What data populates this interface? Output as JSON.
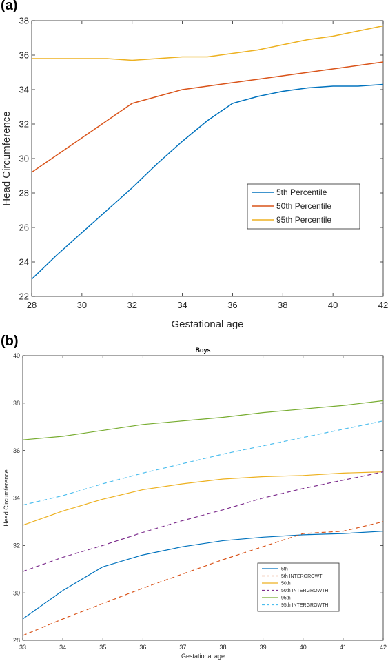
{
  "panel_labels": {
    "a": "(a)",
    "b": "(b)"
  },
  "chart_data": [
    {
      "id": "a",
      "type": "line",
      "title": "",
      "xlabel": "Gestational age",
      "ylabel": "Head Circumference",
      "xlim": [
        28,
        42
      ],
      "ylim": [
        22,
        38
      ],
      "xticks": [
        28,
        30,
        32,
        34,
        36,
        38,
        40,
        42
      ],
      "yticks": [
        22,
        24,
        26,
        28,
        30,
        32,
        34,
        36,
        38
      ],
      "grid": false,
      "legend_position": "right",
      "x": [
        28,
        29,
        30,
        31,
        32,
        33,
        34,
        35,
        36,
        37,
        38,
        39,
        40,
        41,
        42
      ],
      "series": [
        {
          "name": "5th Percentile",
          "color": "#0072BD",
          "dash": "solid",
          "values": [
            23.0,
            24.4,
            25.7,
            27.0,
            28.3,
            29.7,
            31.0,
            32.2,
            33.2,
            33.6,
            33.9,
            34.1,
            34.2,
            34.2,
            34.3
          ]
        },
        {
          "name": "50th Percentile",
          "color": "#D95319",
          "dash": "solid",
          "values": [
            29.2,
            30.2,
            31.2,
            32.2,
            33.2,
            33.6,
            34.0,
            34.2,
            34.4,
            34.6,
            34.8,
            35.0,
            35.2,
            35.4,
            35.6
          ]
        },
        {
          "name": "95th Percentile",
          "color": "#EDB120",
          "dash": "solid",
          "values": [
            35.8,
            35.8,
            35.8,
            35.8,
            35.7,
            35.8,
            35.9,
            35.9,
            36.1,
            36.3,
            36.6,
            36.9,
            37.1,
            37.4,
            37.7
          ]
        }
      ]
    },
    {
      "id": "b",
      "type": "line",
      "title": "Boys",
      "xlabel": "Gestational age",
      "ylabel": "Head Circumference",
      "xlim": [
        33,
        42
      ],
      "ylim": [
        28,
        40
      ],
      "xticks": [
        33,
        34,
        35,
        36,
        37,
        38,
        39,
        40,
        41,
        42
      ],
      "yticks": [
        28,
        30,
        32,
        34,
        36,
        38,
        40
      ],
      "grid": false,
      "legend_position": "bottom-right",
      "x": [
        33,
        34,
        35,
        36,
        37,
        38,
        39,
        40,
        41,
        42
      ],
      "series": [
        {
          "name": "5th",
          "color": "#0072BD",
          "dash": "solid",
          "values": [
            28.9,
            30.1,
            31.1,
            31.6,
            31.95,
            32.2,
            32.35,
            32.45,
            32.5,
            32.6
          ]
        },
        {
          "name": "5th INTERGROWTH",
          "color": "#D95319",
          "dash": "dashed",
          "values": [
            28.2,
            28.9,
            29.55,
            30.2,
            30.8,
            31.4,
            31.95,
            32.5,
            32.6,
            33.0
          ]
        },
        {
          "name": "50th",
          "color": "#EDB120",
          "dash": "solid",
          "values": [
            32.85,
            33.45,
            33.95,
            34.35,
            34.6,
            34.8,
            34.9,
            34.95,
            35.05,
            35.1
          ]
        },
        {
          "name": "50th INTERGROWTH",
          "color": "#7E2F8E",
          "dash": "dashed",
          "values": [
            30.9,
            31.5,
            32.0,
            32.55,
            33.05,
            33.5,
            34.0,
            34.4,
            34.75,
            35.1
          ]
        },
        {
          "name": "95th",
          "color": "#77AC30",
          "dash": "solid",
          "values": [
            36.45,
            36.6,
            36.85,
            37.1,
            37.25,
            37.4,
            37.6,
            37.75,
            37.9,
            38.1
          ]
        },
        {
          "name": "95th INTERGROWTH",
          "color": "#4DBEEE",
          "dash": "dashed",
          "values": [
            33.7,
            34.1,
            34.6,
            35.05,
            35.45,
            35.85,
            36.2,
            36.55,
            36.9,
            37.25
          ]
        }
      ]
    }
  ]
}
